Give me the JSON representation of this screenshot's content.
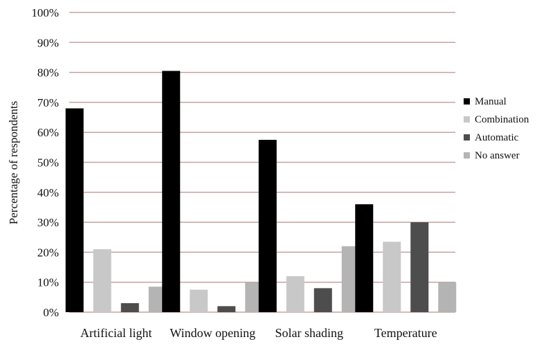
{
  "chart_data": {
    "type": "bar",
    "title": "",
    "xlabel": "",
    "ylabel": "Percentage of respondents",
    "ylim": [
      0,
      100
    ],
    "yticks": [
      "0%",
      "10%",
      "20%",
      "30%",
      "40%",
      "50%",
      "60%",
      "70%",
      "80%",
      "90%",
      "100%"
    ],
    "grid": "horizontal",
    "legend_position": "right",
    "categories": [
      "Artificial light",
      "Window opening",
      "Solar shading",
      "Temperature"
    ],
    "series": [
      {
        "name": "Manual",
        "color": "#000000",
        "values": [
          68,
          80.5,
          57.5,
          36
        ]
      },
      {
        "name": "Combination",
        "color": "#c8c8c8",
        "values": [
          21,
          7.5,
          12,
          23.5
        ]
      },
      {
        "name": "Automatic",
        "color": "#4d4d4d",
        "values": [
          3,
          2,
          8,
          30
        ]
      },
      {
        "name": "No answer",
        "color": "#b4b4b4",
        "values": [
          8.5,
          10,
          22,
          10
        ]
      }
    ],
    "gridline_color": "#c8a0a0"
  }
}
